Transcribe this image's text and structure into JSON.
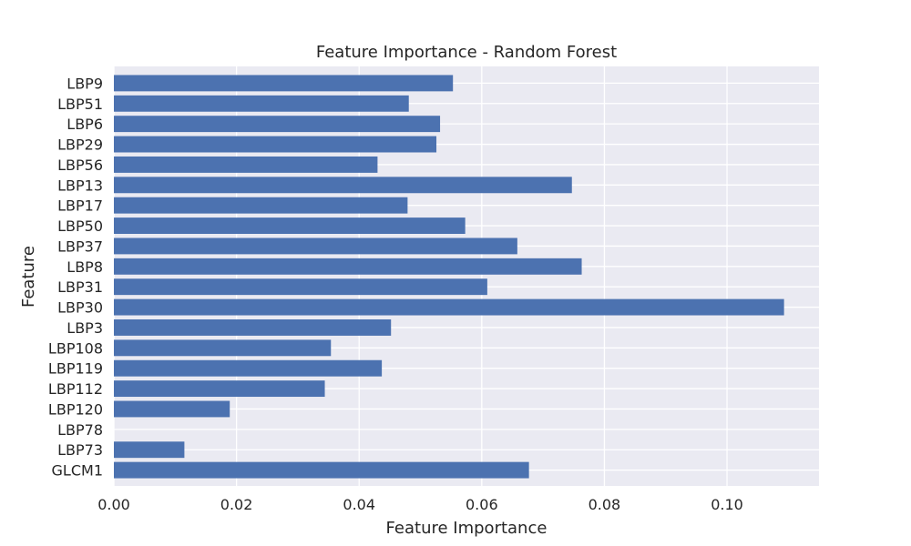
{
  "chart_data": {
    "type": "bar",
    "orientation": "horizontal",
    "title": "Feature Importance - Random Forest",
    "xlabel": "Feature Importance",
    "ylabel": "Feature",
    "xlim": [
      0.0,
      0.115
    ],
    "xticks": [
      0.0,
      0.02,
      0.04,
      0.06,
      0.08,
      0.1
    ],
    "xtick_labels": [
      "0.00",
      "0.02",
      "0.04",
      "0.06",
      "0.08",
      "0.10"
    ],
    "grid": true,
    "legend": "none",
    "categories": [
      "LBP9",
      "LBP51",
      "LBP6",
      "LBP29",
      "LBP56",
      "LBP13",
      "LBP17",
      "LBP50",
      "LBP37",
      "LBP8",
      "LBP31",
      "LBP30",
      "LBP3",
      "LBP108",
      "LBP119",
      "LBP112",
      "LBP120",
      "LBP78",
      "LBP73",
      "GLCM1"
    ],
    "values": [
      0.0553,
      0.0481,
      0.0532,
      0.0526,
      0.043,
      0.0747,
      0.0479,
      0.0573,
      0.0658,
      0.0763,
      0.0609,
      0.1093,
      0.0452,
      0.0354,
      0.0437,
      0.0344,
      0.0189,
      0.0,
      0.0115,
      0.0677
    ]
  },
  "colors": {
    "bar": "#4c72b0",
    "plot_background": "#eaeaf2",
    "grid": "#ffffff",
    "text": "#262626"
  }
}
